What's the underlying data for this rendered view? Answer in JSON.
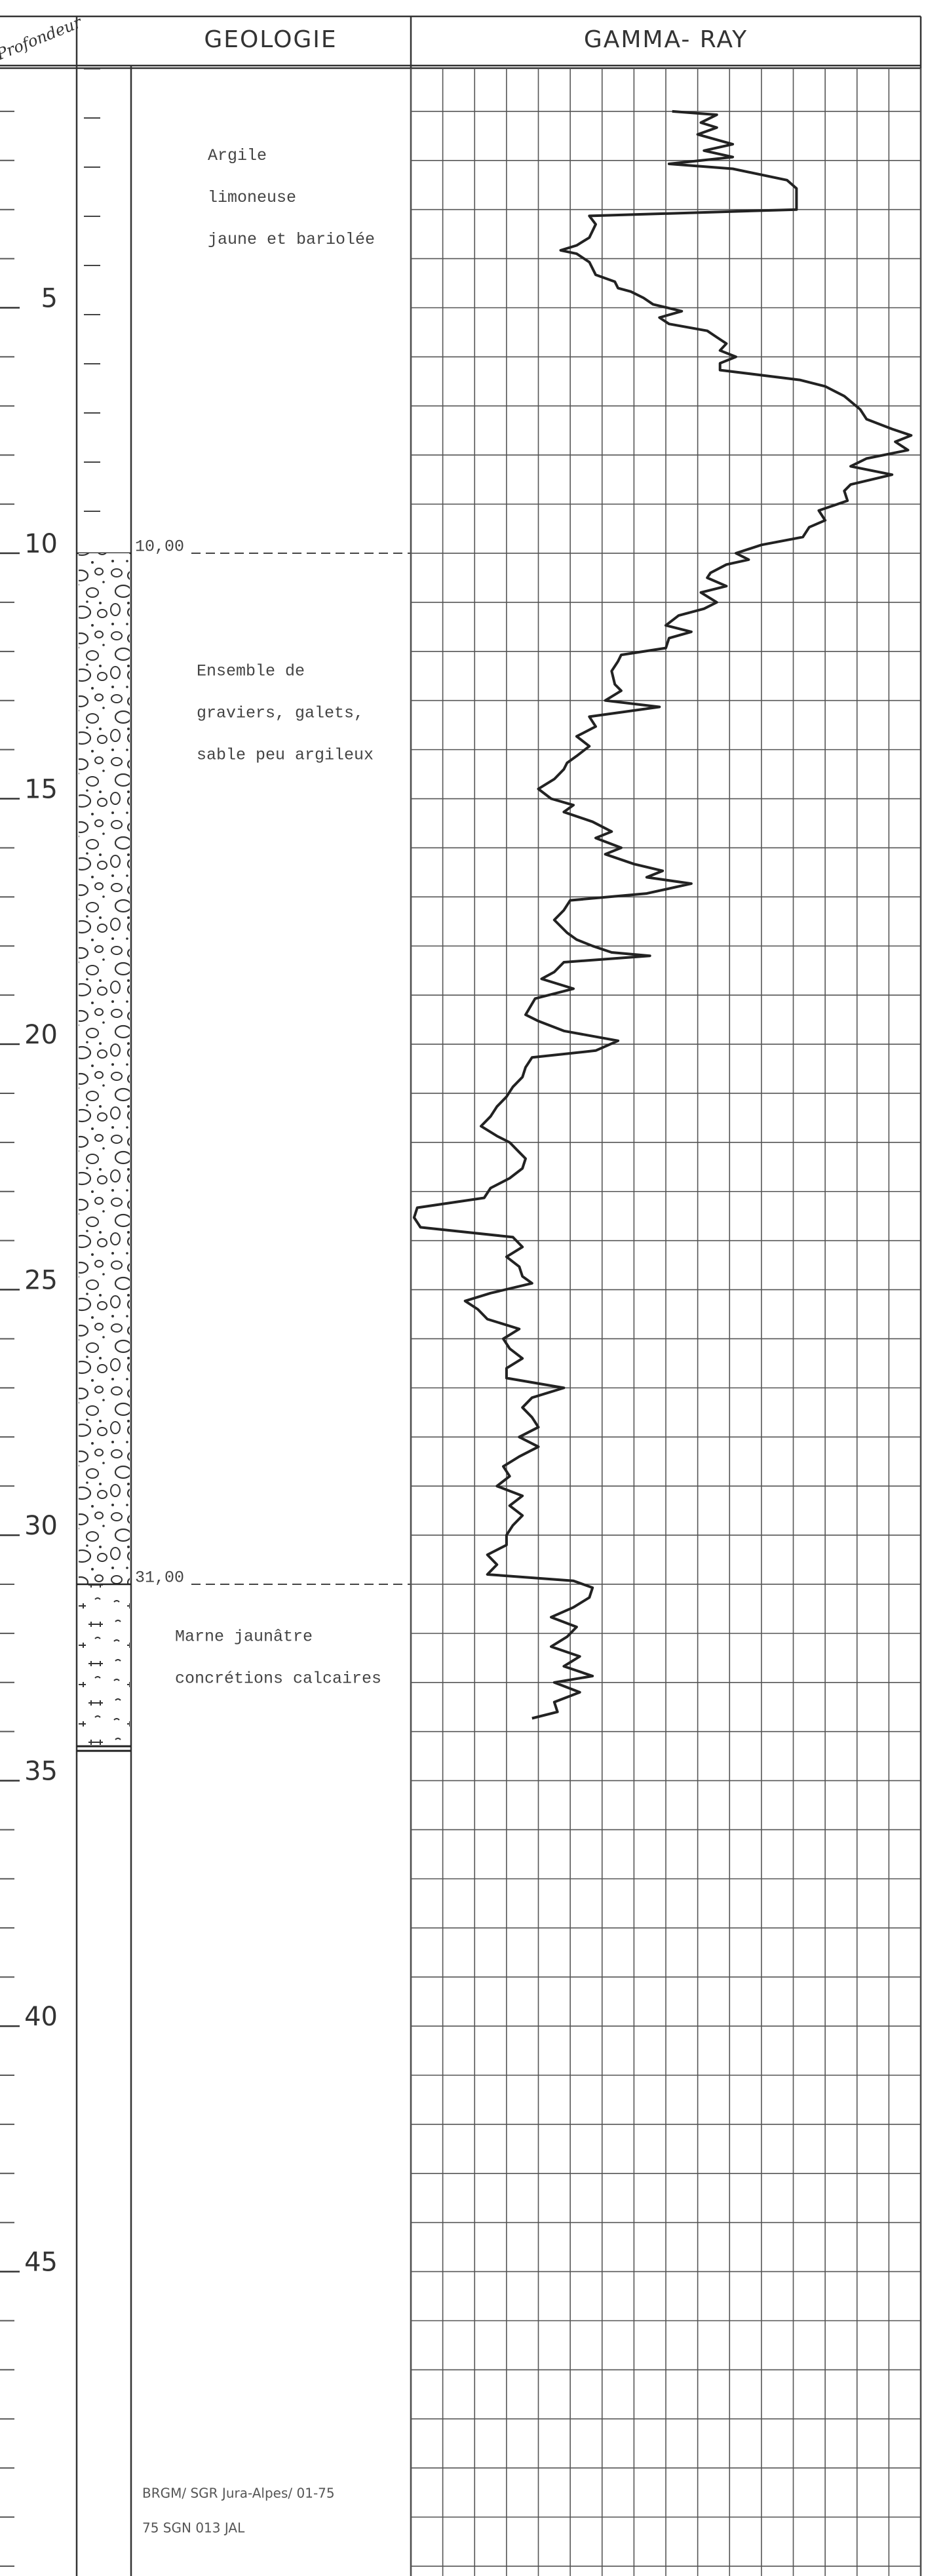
{
  "chart_data": {
    "type": "line",
    "x_label": "Profondeur",
    "geology_label": "GEOLOGIE",
    "y_label": "GAMMA- RAY",
    "xlim": [
      0,
      51.2
    ],
    "xticks": [
      5,
      10,
      15,
      20,
      25,
      30,
      35,
      40,
      45
    ],
    "xgrid_step": 1,
    "ylim": [
      0,
      16
    ],
    "yticks": [
      0,
      1,
      2,
      3,
      4,
      5,
      6,
      7,
      8,
      9,
      10,
      11,
      12,
      13,
      14,
      15,
      16
    ],
    "grid": true,
    "color": "#222222",
    "layers": [
      {
        "description": [
          "Argile",
          "limoneuse",
          "jaune et bariolée"
        ],
        "base": {
          "value": 10,
          "label": "10,00"
        }
      },
      {
        "description": [
          "Ensemble de",
          "graviers, galets,",
          "sable peu argileux"
        ],
        "base": {
          "value": 31,
          "label": "31,00"
        }
      },
      {
        "description": [
          "Marne jaunâtre",
          "concrétions calcaires"
        ],
        "base": 34.3
      }
    ],
    "footer": [
      "BRGM/ SGR Jura-Alpes/ 01-75",
      "75 SGN 013 JAL"
    ],
    "x": [
      1.0,
      1.07,
      1.23,
      1.33,
      1.47,
      1.67,
      1.8,
      1.93,
      2.07,
      2.17,
      2.4,
      2.57,
      2.67,
      3.0,
      3.13,
      3.3,
      3.57,
      3.73,
      3.83,
      3.9,
      4.07,
      4.33,
      4.47,
      4.6,
      4.67,
      4.8,
      4.93,
      5.07,
      5.2,
      5.33,
      5.47,
      5.6,
      5.73,
      5.87,
      6.0,
      6.13,
      6.27,
      6.47,
      6.6,
      6.8,
      7.07,
      7.27,
      7.47,
      7.6,
      7.73,
      7.9,
      8.07,
      8.23,
      8.4,
      8.6,
      8.73,
      8.93,
      9.13,
      9.33,
      9.47,
      9.67,
      9.83,
      10.0,
      10.13,
      10.23,
      10.4,
      10.5,
      10.67,
      10.8,
      11.0,
      11.13,
      11.27,
      11.47,
      11.6,
      11.73,
      11.93,
      12.07,
      12.2,
      12.4,
      12.67,
      12.8,
      13.0,
      13.13,
      13.33,
      13.53,
      13.73,
      13.93,
      14.13,
      14.27,
      14.4,
      14.6,
      14.8,
      15.0,
      15.13,
      15.27,
      15.47,
      15.67,
      15.8,
      16.0,
      16.13,
      16.33,
      16.47,
      16.6,
      16.73,
      16.93,
      17.07,
      17.27,
      17.47,
      17.73,
      17.87,
      18.0,
      18.13,
      18.2,
      18.33,
      18.53,
      18.67,
      18.87,
      19.07,
      19.4,
      19.53,
      19.73,
      19.93,
      20.13,
      20.27,
      20.47,
      20.67,
      20.87,
      21.07,
      21.27,
      21.47,
      21.67,
      21.87,
      22.0,
      22.2,
      22.33,
      22.53,
      22.73,
      22.93,
      23.13,
      23.33,
      23.53,
      23.73,
      23.93,
      24.13,
      24.33,
      24.53,
      24.73,
      24.87,
      25.07,
      25.23,
      25.4,
      25.6,
      25.8,
      26.0,
      26.2,
      26.4,
      26.6,
      26.8,
      27.0,
      27.2,
      27.4,
      27.6,
      27.8,
      28.0,
      28.2,
      28.4,
      28.6,
      28.8,
      29.0,
      29.2,
      29.4,
      29.6,
      29.8,
      30.0,
      30.2,
      30.4,
      30.6,
      30.8,
      30.93,
      31.07,
      31.27,
      31.47,
      31.67,
      31.87,
      32.07,
      32.27,
      32.47,
      32.67,
      32.87,
      33.0,
      33.2,
      33.4,
      33.6,
      33.73
    ],
    "values": [
      8.2,
      9.6,
      9.1,
      9.6,
      9.0,
      10.1,
      9.2,
      10.1,
      8.1,
      10.1,
      11.8,
      12.1,
      12.1,
      12.1,
      5.6,
      5.8,
      5.6,
      5.2,
      4.7,
      5.2,
      5.6,
      5.8,
      6.4,
      6.5,
      6.9,
      7.3,
      7.6,
      8.5,
      7.8,
      8.1,
      9.3,
      9.6,
      9.9,
      9.7,
      10.2,
      9.7,
      9.7,
      12.2,
      13.0,
      13.6,
      14.1,
      14.3,
      15.1,
      15.7,
      15.2,
      15.6,
      14.3,
      13.8,
      15.1,
      13.8,
      13.6,
      13.7,
      12.8,
      13.0,
      12.5,
      12.3,
      11.0,
      10.2,
      10.6,
      9.9,
      9.4,
      9.3,
      9.9,
      9.1,
      9.6,
      9.2,
      8.4,
      8.0,
      8.8,
      8.1,
      8.0,
      6.6,
      6.5,
      6.3,
      6.4,
      6.6,
      6.1,
      7.8,
      5.6,
      5.8,
      5.2,
      5.6,
      5.2,
      4.9,
      4.8,
      4.5,
      4.0,
      4.4,
      5.1,
      4.8,
      5.7,
      6.3,
      5.8,
      6.6,
      6.1,
      7.0,
      7.9,
      7.4,
      8.8,
      7.4,
      5.0,
      4.8,
      4.5,
      4.9,
      5.2,
      5.7,
      6.3,
      7.5,
      4.8,
      4.5,
      4.1,
      5.1,
      3.9,
      3.6,
      4.0,
      4.8,
      6.5,
      5.8,
      3.8,
      3.6,
      3.5,
      3.2,
      3.0,
      2.7,
      2.5,
      2.2,
      2.7,
      3.1,
      3.4,
      3.6,
      3.5,
      3.1,
      2.5,
      2.3,
      0.2,
      0.1,
      0.3,
      3.2,
      3.5,
      3.0,
      3.4,
      3.5,
      3.8,
      2.5,
      1.7,
      2.1,
      2.4,
      3.4,
      2.9,
      3.1,
      3.5,
      3.0,
      3.0,
      4.8,
      3.8,
      3.5,
      3.8,
      4.0,
      3.4,
      4.0,
      3.4,
      2.9,
      3.1,
      2.7,
      3.5,
      3.1,
      3.5,
      3.2,
      3.0,
      3.0,
      2.4,
      2.7,
      2.4,
      5.1,
      5.7,
      5.6,
      5.1,
      4.4,
      5.2,
      4.9,
      4.4,
      5.3,
      4.8,
      5.7,
      4.5,
      5.3,
      4.5,
      4.6,
      3.8
    ]
  }
}
